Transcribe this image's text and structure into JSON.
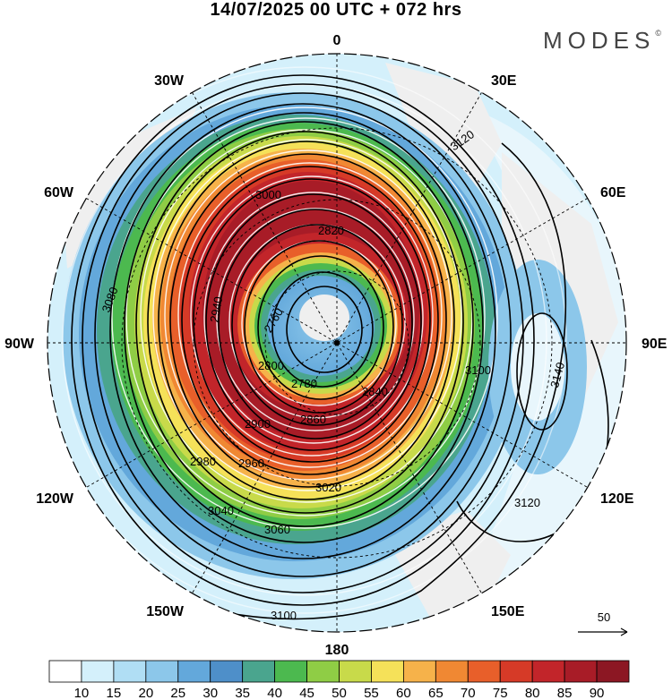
{
  "title": "14/07/2025  00 UTC  + 072 hrs",
  "brand": "MODES",
  "brand_mark": "©",
  "longitude_labels": [
    {
      "lon": "0",
      "angle": 0
    },
    {
      "lon": "30E",
      "angle": 30
    },
    {
      "lon": "60E",
      "angle": 60
    },
    {
      "lon": "90E",
      "angle": 90
    },
    {
      "lon": "120E",
      "angle": 120
    },
    {
      "lon": "150E",
      "angle": 150
    },
    {
      "lon": "180",
      "angle": 180
    },
    {
      "lon": "150W",
      "angle": 210
    },
    {
      "lon": "120W",
      "angle": 240
    },
    {
      "lon": "90W",
      "angle": 270
    },
    {
      "lon": "60W",
      "angle": 300
    },
    {
      "lon": "30W",
      "angle": 330
    }
  ],
  "contour_labels": [
    "3120",
    "3100",
    "3080",
    "3060",
    "3040",
    "3020",
    "3000",
    "2980",
    "2960",
    "2940",
    "2920",
    "2900",
    "2880",
    "2860",
    "2840",
    "2820",
    "2800",
    "2780",
    "2760",
    "3140"
  ],
  "vector_reference": {
    "label": "50"
  },
  "colorbar": {
    "ticks": [
      "10",
      "15",
      "20",
      "25",
      "30",
      "35",
      "40",
      "45",
      "50",
      "55",
      "60",
      "65",
      "70",
      "75",
      "80",
      "85",
      "90"
    ],
    "colors": [
      "#ffffff",
      "#d4f0fb",
      "#b0def4",
      "#8cc7ea",
      "#63a8db",
      "#4e8fc9",
      "#4aa58e",
      "#4cb94f",
      "#8fcd45",
      "#c8da4a",
      "#f5e159",
      "#f6b24a",
      "#f08833",
      "#e85f2a",
      "#d63a27",
      "#c2252a",
      "#a81c27",
      "#8c1723"
    ]
  },
  "colors": {
    "land": "#efefef",
    "contour": "#000000",
    "stream": "#ffffff",
    "frame": "#000000"
  }
}
